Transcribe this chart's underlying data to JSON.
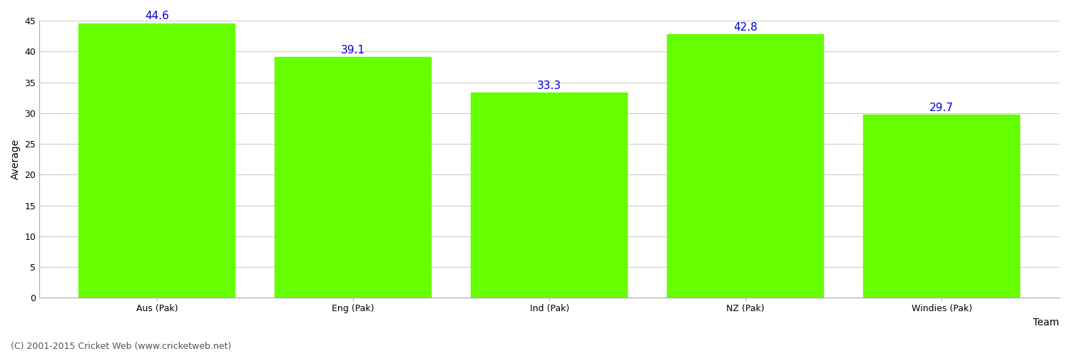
{
  "categories": [
    "Aus (Pak)",
    "Eng (Pak)",
    "Ind (Pak)",
    "NZ (Pak)",
    "Windies (Pak)"
  ],
  "values": [
    44.6,
    39.1,
    33.3,
    42.8,
    29.7
  ],
  "bar_color": "#66ff00",
  "bar_edge_color": "#66ff00",
  "value_label_color": "#0000cc",
  "value_label_fontsize": 11,
  "xlabel": "Team",
  "ylabel": "Average",
  "ylim": [
    0,
    45
  ],
  "yticks": [
    0,
    5,
    10,
    15,
    20,
    25,
    30,
    35,
    40,
    45
  ],
  "grid_color": "#cccccc",
  "background_color": "#ffffff",
  "axis_color": "#aaaaaa",
  "footer_text": "(C) 2001-2015 Cricket Web (www.cricketweb.net)",
  "footer_fontsize": 9,
  "footer_color": "#555555",
  "xlabel_fontsize": 10,
  "ylabel_fontsize": 10,
  "tick_label_fontsize": 9,
  "bar_width": 0.8
}
